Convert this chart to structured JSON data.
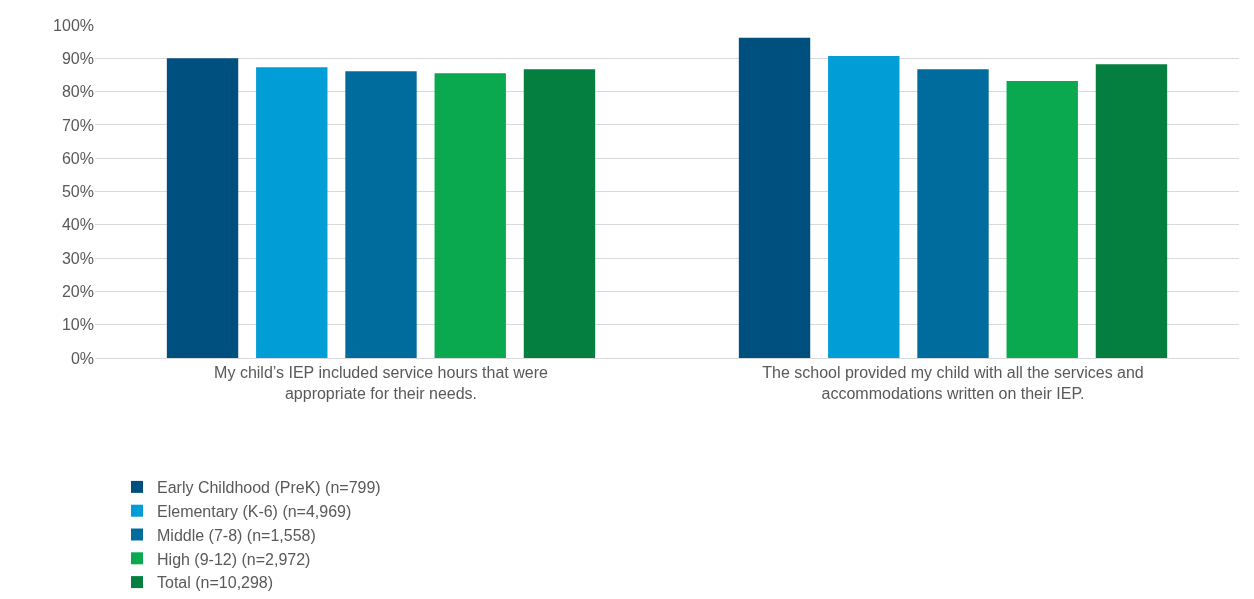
{
  "chart_data": {
    "type": "bar",
    "categories": [
      "My child’s IEP included service hours that were appropriate for their needs.",
      "The school provided my child with all the services and accommodations written on their IEP."
    ],
    "series": [
      {
        "name": "Early Childhood (PreK) (n=799)",
        "color": "#00507f",
        "values": [
          90.0,
          96.2
        ]
      },
      {
        "name": "Elementary (K-6) (n=4,969)",
        "color": "#009dd6",
        "values": [
          87.3,
          90.7
        ]
      },
      {
        "name": "Middle (7-8) (n=1,558)",
        "color": "#006c9e",
        "values": [
          86.1,
          86.7
        ]
      },
      {
        "name": "High (9-12) (n=2,972)",
        "color": "#0aa84f",
        "values": [
          85.5,
          83.2
        ]
      },
      {
        "name": "Total (n=10,298)",
        "color": "#047f40",
        "values": [
          86.7,
          88.2
        ]
      }
    ],
    "ylim": [
      0,
      100
    ],
    "yticks": [
      {
        "value": 0,
        "label": "0%"
      },
      {
        "value": 10,
        "label": "10%"
      },
      {
        "value": 20,
        "label": "20%"
      },
      {
        "value": 30,
        "label": "30%"
      },
      {
        "value": 40,
        "label": "40%"
      },
      {
        "value": 50,
        "label": "50%"
      },
      {
        "value": 60,
        "label": "60%"
      },
      {
        "value": 70,
        "label": "70%"
      },
      {
        "value": 80,
        "label": "80%"
      },
      {
        "value": 90,
        "label": "90%"
      },
      {
        "value": 100,
        "label": "100%"
      }
    ],
    "grid": "y",
    "legend": "bottom"
  }
}
